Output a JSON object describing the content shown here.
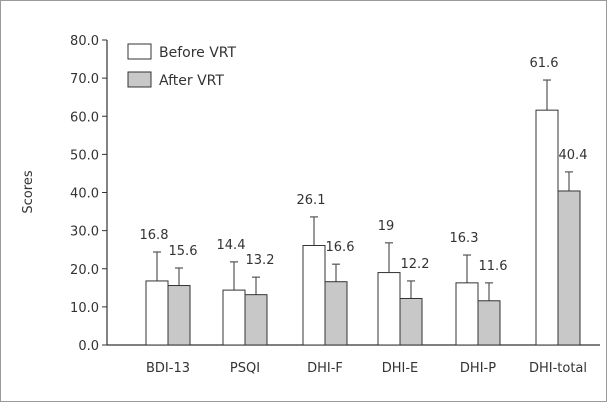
{
  "chart_data": {
    "type": "bar",
    "title": "",
    "xlabel": "",
    "ylabel": "Scores",
    "ylim": [
      0,
      80
    ],
    "yticks": [
      "0.0",
      "10.0",
      "20.0",
      "30.0",
      "40.0",
      "50.0",
      "60.0",
      "70.0",
      "80.0"
    ],
    "grid": false,
    "legend_position": "top-left",
    "categories": [
      "BDI-13",
      "PSQI",
      "DHI-F",
      "DHI-E",
      "DHI-P",
      "DHI-total"
    ],
    "series": [
      {
        "name": "Before VRT",
        "color": "#ffffff",
        "values": [
          16.8,
          14.4,
          26.1,
          19,
          16.3,
          61.6
        ],
        "labels": [
          "16.8",
          "14.4",
          "26.1",
          "19",
          "16.3",
          "61.6"
        ],
        "error_upper": [
          7.6,
          7.4,
          7.5,
          7.8,
          7.3,
          7.9
        ]
      },
      {
        "name": "After VRT",
        "color": "#c8c8c8",
        "values": [
          15.6,
          13.2,
          16.6,
          12.2,
          11.6,
          40.4
        ],
        "labels": [
          "15.6",
          "13.2",
          "16.6",
          "12.2",
          "11.6",
          "40.4"
        ],
        "error_upper": [
          4.6,
          4.6,
          4.6,
          4.6,
          4.7,
          5.0
        ]
      }
    ]
  }
}
